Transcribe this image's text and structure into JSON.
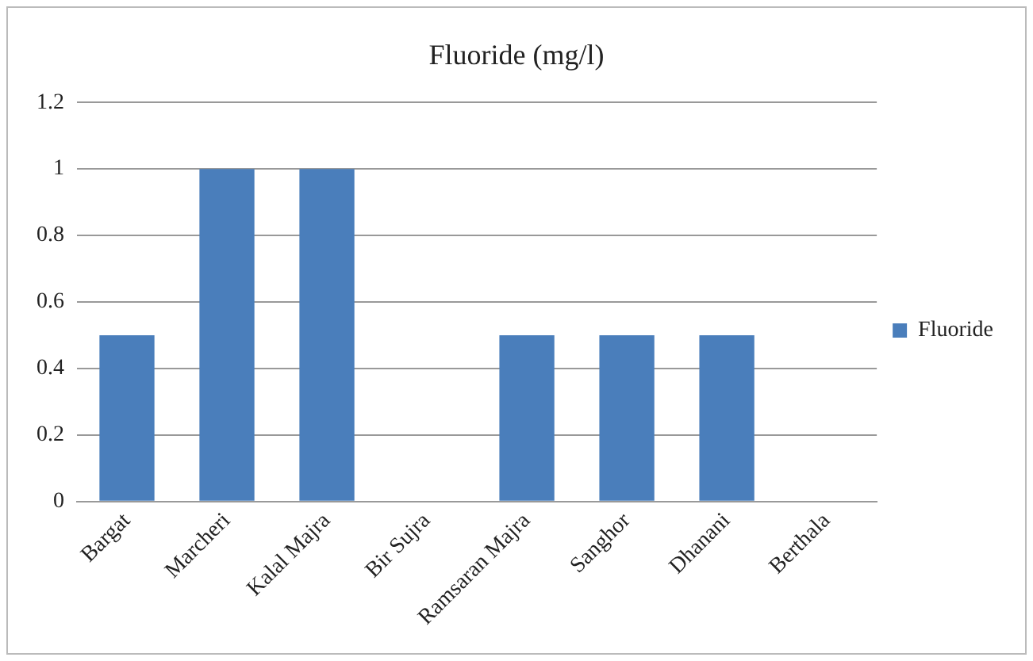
{
  "chart_data": {
    "type": "bar",
    "title": "Fluoride (mg/l)",
    "categories": [
      "Bargat",
      "Marcheri",
      "Kalal Majra",
      "Bir Sujra",
      "Ramsaran Majra",
      "Sanghor",
      "Dhanani",
      "Berthala"
    ],
    "series": [
      {
        "name": "Fluoride",
        "color": "#4a7ebb",
        "values": [
          0.5,
          1,
          1,
          0,
          0.5,
          0.5,
          0.5,
          0
        ]
      }
    ],
    "ylim": [
      0,
      1.2
    ],
    "yticks": [
      0,
      0.2,
      0.4,
      0.6,
      0.8,
      1,
      1.2
    ],
    "grid": "y",
    "legend": "right"
  }
}
